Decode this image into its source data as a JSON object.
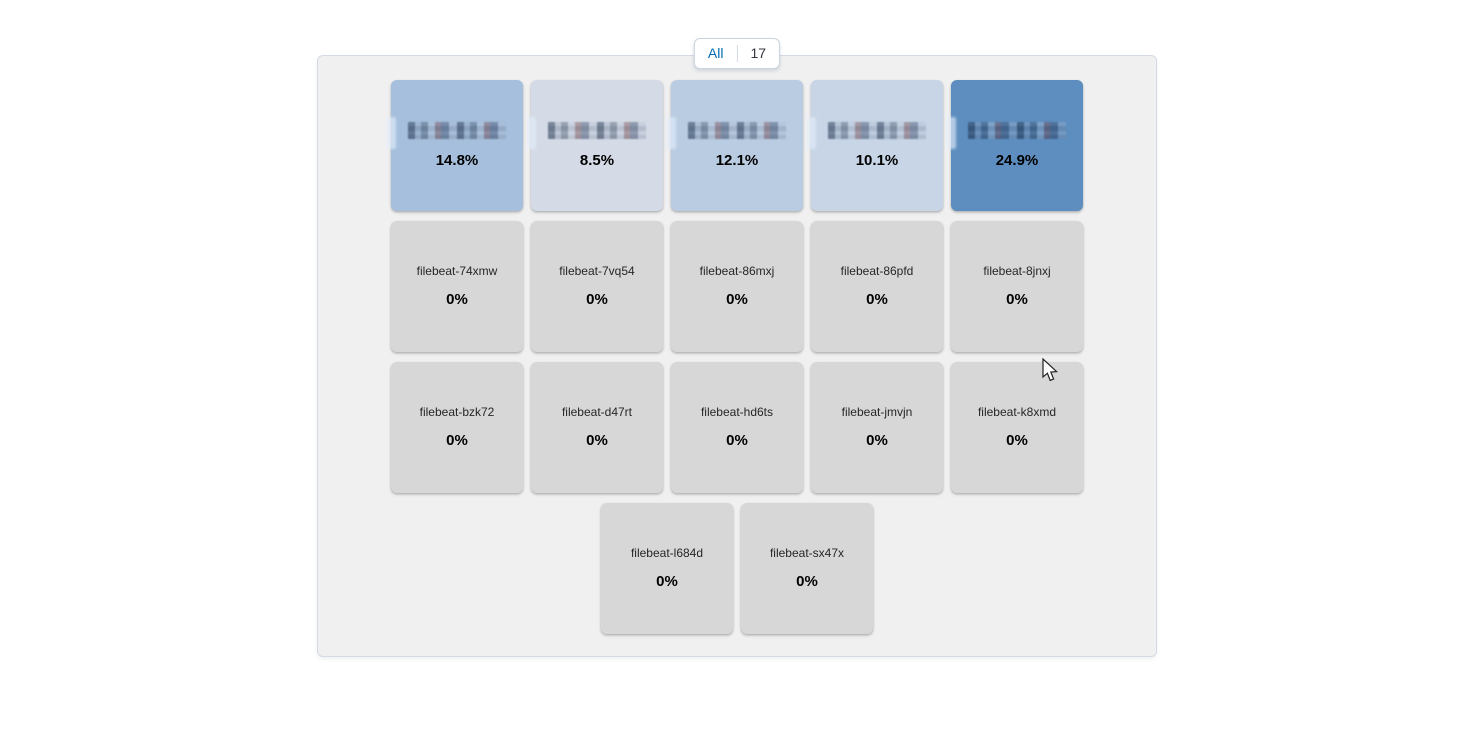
{
  "colors": {
    "panel_bg": "#f0f0f1",
    "panel_border": "#d5dae4",
    "tab_active_text": "#006bb4",
    "tab_count_text": "#343741",
    "value_text": "#000000",
    "label_text": "#262626"
  },
  "tabs": {
    "all_label": "All",
    "count": "17"
  },
  "tiles": [
    {
      "label": null,
      "label_redacted": true,
      "value": "14.8%",
      "bg": "#a5bfdc"
    },
    {
      "label": null,
      "label_redacted": true,
      "value": "8.5%",
      "bg": "#d4dbe6"
    },
    {
      "label": null,
      "label_redacted": true,
      "value": "12.1%",
      "bg": "#b9cce2"
    },
    {
      "label": null,
      "label_redacted": true,
      "value": "10.1%",
      "bg": "#c7d5e6"
    },
    {
      "label": null,
      "label_redacted": true,
      "value": "24.9%",
      "bg": "#5d8ebf"
    },
    {
      "label": "filebeat-74xmw",
      "label_redacted": false,
      "value": "0%",
      "bg": "#d7d7d7"
    },
    {
      "label": "filebeat-7vq54",
      "label_redacted": false,
      "value": "0%",
      "bg": "#d7d7d7"
    },
    {
      "label": "filebeat-86mxj",
      "label_redacted": false,
      "value": "0%",
      "bg": "#d7d7d7"
    },
    {
      "label": "filebeat-86pfd",
      "label_redacted": false,
      "value": "0%",
      "bg": "#d7d7d7"
    },
    {
      "label": "filebeat-8jnxj",
      "label_redacted": false,
      "value": "0%",
      "bg": "#d7d7d7"
    },
    {
      "label": "filebeat-bzk72",
      "label_redacted": false,
      "value": "0%",
      "bg": "#d7d7d7"
    },
    {
      "label": "filebeat-d47rt",
      "label_redacted": false,
      "value": "0%",
      "bg": "#d7d7d7"
    },
    {
      "label": "filebeat-hd6ts",
      "label_redacted": false,
      "value": "0%",
      "bg": "#d7d7d7"
    },
    {
      "label": "filebeat-jmvjn",
      "label_redacted": false,
      "value": "0%",
      "bg": "#d7d7d7"
    },
    {
      "label": "filebeat-k8xmd",
      "label_redacted": false,
      "value": "0%",
      "bg": "#d7d7d7"
    },
    {
      "label": "filebeat-l684d",
      "label_redacted": false,
      "value": "0%",
      "bg": "#d7d7d7"
    },
    {
      "label": "filebeat-sx47x",
      "label_redacted": false,
      "value": "0%",
      "bg": "#d7d7d7"
    }
  ],
  "chart_data": {
    "type": "heatmap",
    "title": "",
    "legend_position": "none",
    "unit": "percent",
    "categories": [
      null,
      null,
      null,
      null,
      null,
      "filebeat-74xmw",
      "filebeat-7vq54",
      "filebeat-86mxj",
      "filebeat-86pfd",
      "filebeat-8jnxj",
      "filebeat-bzk72",
      "filebeat-d47rt",
      "filebeat-hd6ts",
      "filebeat-jmvjn",
      "filebeat-k8xmd",
      "filebeat-l684d",
      "filebeat-sx47x"
    ],
    "values": [
      14.8,
      8.5,
      12.1,
      10.1,
      24.9,
      0,
      0,
      0,
      0,
      0,
      0,
      0,
      0,
      0,
      0,
      0,
      0
    ]
  }
}
